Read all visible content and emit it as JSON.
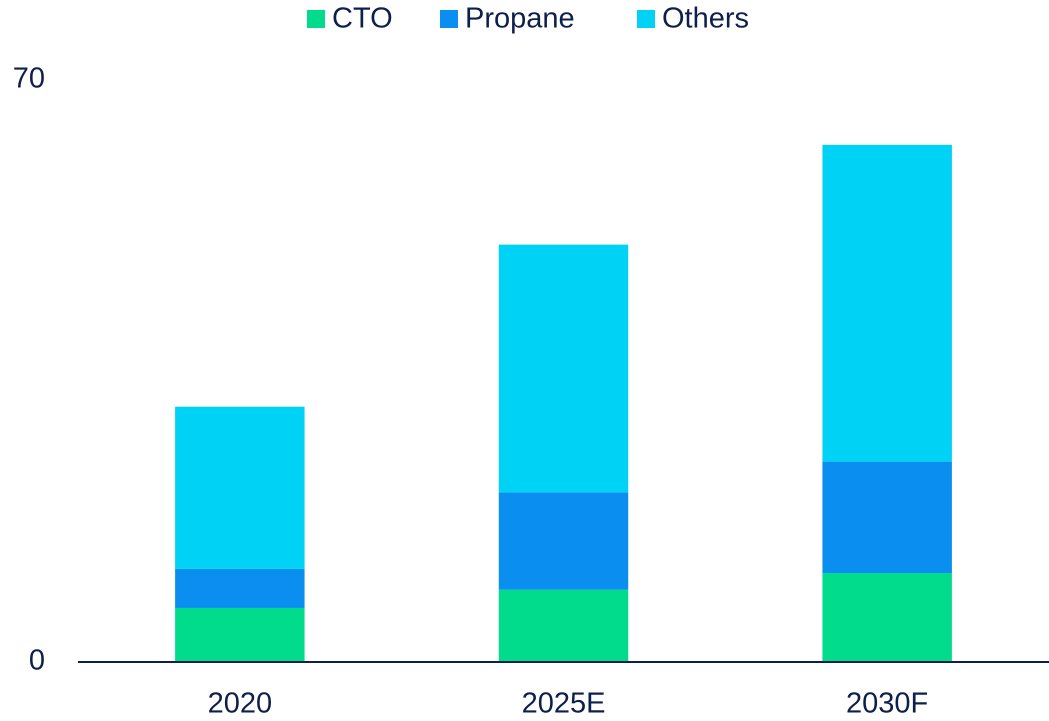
{
  "chart_data": {
    "type": "stacked_bar",
    "categories": [
      "2020",
      "2025E",
      "2030F"
    ],
    "series": [
      {
        "name": "CTO",
        "color": "#00dc8c",
        "values": [
          6.5,
          8.7,
          10.7
        ]
      },
      {
        "name": "Propane",
        "color": "#0a8ff0",
        "values": [
          4.7,
          11.7,
          13.4
        ]
      },
      {
        "name": "Others",
        "color": "#00d2f5",
        "values": [
          19.5,
          29.8,
          38.1
        ]
      }
    ],
    "ylim": [
      0,
      70
    ],
    "yticks": [
      0,
      70
    ],
    "grid": false,
    "legend": "top"
  }
}
